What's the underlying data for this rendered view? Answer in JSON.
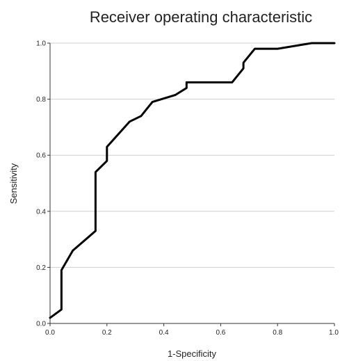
{
  "chart_data": {
    "type": "line",
    "title": "Receiver operating characteristic",
    "xlabel": "1-Specificity",
    "ylabel": "Sensitivity",
    "xlim": [
      0,
      1
    ],
    "ylim": [
      0,
      1
    ],
    "x_ticks": [
      "0.0",
      "0.2",
      "0.4",
      "0.6",
      "0.8",
      "1.0"
    ],
    "y_ticks": [
      "0.0",
      "0.2",
      "0.4",
      "0.6",
      "0.8",
      "1.0"
    ],
    "grid": "horizontal",
    "line_color": "#000000",
    "series": [
      {
        "x": [
          0.0,
          0.04,
          0.04,
          0.08,
          0.16,
          0.16,
          0.2,
          0.2,
          0.28,
          0.32,
          0.36,
          0.44,
          0.48,
          0.48,
          0.64,
          0.68,
          0.68,
          0.72,
          0.8,
          0.92,
          1.0
        ],
        "y": [
          0.02,
          0.05,
          0.19,
          0.26,
          0.33,
          0.54,
          0.58,
          0.63,
          0.72,
          0.74,
          0.79,
          0.815,
          0.84,
          0.86,
          0.86,
          0.91,
          0.93,
          0.98,
          0.98,
          1.0,
          1.0
        ]
      }
    ]
  }
}
